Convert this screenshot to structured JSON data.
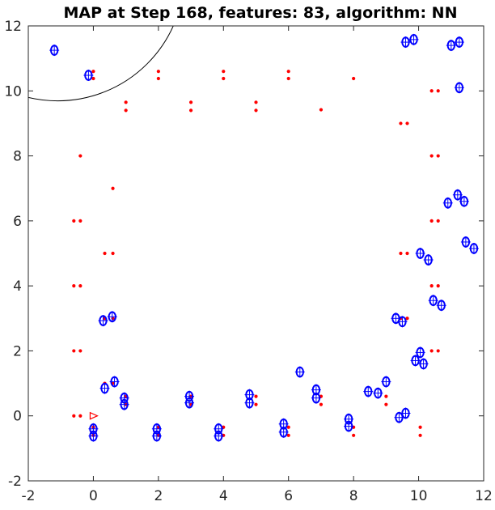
{
  "chart_data": {
    "type": "scatter",
    "title": "MAP at Step 168, features: 83, algorithm: NN",
    "xlim": [
      -2,
      12
    ],
    "ylim": [
      -2,
      12
    ],
    "xticks": [
      -2,
      0,
      2,
      4,
      6,
      8,
      10,
      12
    ],
    "yticks": [
      -2,
      0,
      2,
      4,
      6,
      8,
      10,
      12
    ],
    "xlabel": "",
    "ylabel": "",
    "grid": false,
    "colors": {
      "landmarks": "#ff0000",
      "estimates": "#0000ff",
      "robot": "#ff0000",
      "sensor_range": "#000000"
    },
    "landmarks": [
      [
        -0.6,
        0.0
      ],
      [
        -0.4,
        0.0
      ],
      [
        -0.6,
        2.0
      ],
      [
        -0.4,
        2.0
      ],
      [
        -0.6,
        4.0
      ],
      [
        -0.4,
        4.0
      ],
      [
        -0.6,
        6.0
      ],
      [
        -0.4,
        6.0
      ],
      [
        -0.4,
        8.0
      ],
      [
        0.35,
        5.0
      ],
      [
        0.6,
        5.0
      ],
      [
        0.6,
        7.0
      ],
      [
        1.0,
        9.65
      ],
      [
        1.0,
        9.4
      ],
      [
        2.0,
        10.6
      ],
      [
        2.0,
        10.38
      ],
      [
        3.0,
        9.65
      ],
      [
        3.0,
        9.4
      ],
      [
        4.0,
        10.6
      ],
      [
        4.0,
        10.38
      ],
      [
        5.0,
        9.65
      ],
      [
        5.0,
        9.4
      ],
      [
        6.0,
        10.6
      ],
      [
        6.0,
        10.38
      ],
      [
        7.0,
        9.42
      ],
      [
        8.0,
        10.38
      ],
      [
        9.45,
        9.0
      ],
      [
        9.65,
        9.0
      ],
      [
        10.4,
        8.0
      ],
      [
        10.6,
        8.0
      ],
      [
        10.4,
        10.0
      ],
      [
        10.6,
        10.0
      ],
      [
        9.45,
        5.0
      ],
      [
        9.65,
        5.0
      ],
      [
        10.4,
        6.0
      ],
      [
        10.6,
        6.0
      ],
      [
        10.4,
        4.0
      ],
      [
        10.6,
        4.0
      ],
      [
        10.4,
        2.0
      ],
      [
        10.6,
        2.0
      ],
      [
        9.45,
        3.0
      ],
      [
        9.65,
        3.0
      ],
      [
        0.35,
        1.0
      ],
      [
        0.6,
        1.0
      ],
      [
        0.35,
        3.0
      ],
      [
        0.6,
        3.0
      ],
      [
        1.0,
        0.6
      ],
      [
        1.0,
        0.35
      ],
      [
        0.0,
        10.6
      ],
      [
        0.0,
        10.38
      ],
      [
        0.0,
        -0.35
      ],
      [
        0.0,
        -0.6
      ],
      [
        2.0,
        -0.35
      ],
      [
        2.0,
        -0.6
      ],
      [
        3.0,
        0.6
      ],
      [
        3.0,
        0.35
      ],
      [
        4.0,
        -0.35
      ],
      [
        4.0,
        -0.6
      ],
      [
        5.0,
        0.6
      ],
      [
        5.0,
        0.35
      ],
      [
        6.0,
        -0.35
      ],
      [
        6.0,
        -0.6
      ],
      [
        7.0,
        0.6
      ],
      [
        7.0,
        0.35
      ],
      [
        8.0,
        -0.35
      ],
      [
        8.0,
        -0.6
      ],
      [
        9.0,
        0.6
      ],
      [
        9.0,
        0.35
      ],
      [
        10.05,
        -0.35
      ],
      [
        10.05,
        -0.6
      ]
    ],
    "estimates": [
      [
        -1.2,
        11.25
      ],
      [
        -0.15,
        10.48
      ],
      [
        9.6,
        11.5
      ],
      [
        9.85,
        11.58
      ],
      [
        11.0,
        11.4
      ],
      [
        11.25,
        11.5
      ],
      [
        11.25,
        10.1
      ],
      [
        10.9,
        6.55
      ],
      [
        11.2,
        6.8
      ],
      [
        11.4,
        6.6
      ],
      [
        11.45,
        5.35
      ],
      [
        11.7,
        5.15
      ],
      [
        10.05,
        5.0
      ],
      [
        10.3,
        4.8
      ],
      [
        10.45,
        3.55
      ],
      [
        10.7,
        3.4
      ],
      [
        9.3,
        3.0
      ],
      [
        9.5,
        2.9
      ],
      [
        9.9,
        1.7
      ],
      [
        10.05,
        1.95
      ],
      [
        10.15,
        1.6
      ],
      [
        0.3,
        2.93
      ],
      [
        0.58,
        3.05
      ],
      [
        0.35,
        0.85
      ],
      [
        0.65,
        1.05
      ],
      [
        0.95,
        0.55
      ],
      [
        0.95,
        0.35
      ],
      [
        0.0,
        -0.4
      ],
      [
        0.0,
        -0.62
      ],
      [
        1.95,
        -0.4
      ],
      [
        1.95,
        -0.62
      ],
      [
        2.95,
        0.6
      ],
      [
        2.95,
        0.4
      ],
      [
        3.85,
        -0.4
      ],
      [
        3.85,
        -0.62
      ],
      [
        4.8,
        0.65
      ],
      [
        4.8,
        0.4
      ],
      [
        5.85,
        -0.25
      ],
      [
        5.85,
        -0.5
      ],
      [
        6.35,
        1.35
      ],
      [
        6.85,
        0.8
      ],
      [
        6.85,
        0.55
      ],
      [
        7.85,
        -0.1
      ],
      [
        7.85,
        -0.32
      ],
      [
        8.45,
        0.75
      ],
      [
        8.75,
        0.7
      ],
      [
        9.0,
        1.05
      ],
      [
        9.4,
        -0.05
      ],
      [
        9.6,
        0.08
      ]
    ],
    "robot": {
      "x": 0.0,
      "y": 0.0,
      "heading_deg": 0
    },
    "sensor_range": {
      "x": -1.1,
      "y": 13.6,
      "radius": 3.9
    }
  }
}
